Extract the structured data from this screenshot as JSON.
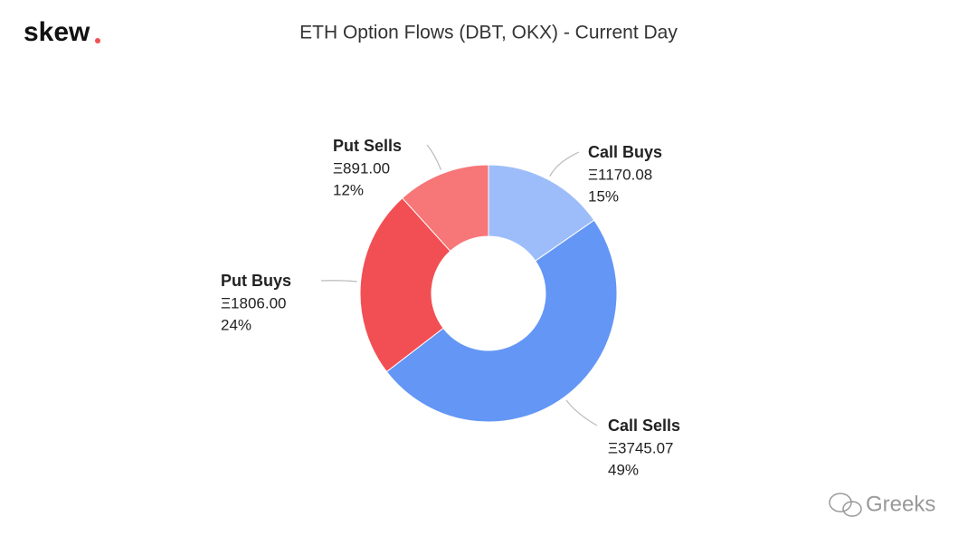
{
  "logo": "skew",
  "watermark": "Greeks",
  "chart_data": {
    "type": "donut",
    "title": "ETH Option Flows (DBT, OKX) - Current Day",
    "categories": [
      "Call Buys",
      "Call Sells",
      "Put Buys",
      "Put Sells"
    ],
    "values": [
      1170.08,
      3745.07,
      1806.0,
      891.0
    ],
    "value_labels": [
      "Ξ1170.08",
      "Ξ3745.07",
      "Ξ1806.00",
      "Ξ891.00"
    ],
    "percent_labels": [
      "15%",
      "49%",
      "24%",
      "12%"
    ],
    "colors": [
      "#9dbdfa",
      "#6396f5",
      "#f24f54",
      "#f77677"
    ]
  }
}
